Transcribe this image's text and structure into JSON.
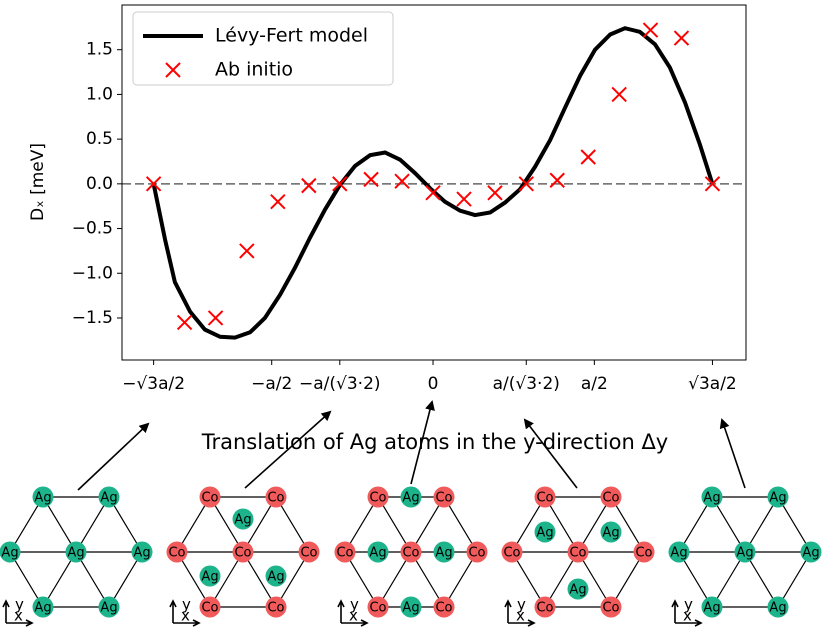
{
  "chart_data": {
    "type": "line",
    "y_label": "Dₓ [meV]",
    "x_label": "Translation of Ag atoms in the y-direction Δy",
    "xlim": [
      -0.964,
      0.97
    ],
    "ylim": [
      -1.97,
      2.0
    ],
    "xticks": [
      {
        "value": -0.866,
        "label": "−√3a/2"
      },
      {
        "value": -0.5,
        "label": "−a/2"
      },
      {
        "value": -0.289,
        "label": "−a/(√3·2)"
      },
      0,
      {
        "value": 0.289,
        "label": "a/(√3·2)"
      },
      {
        "value": 0.5,
        "label": "a/2"
      },
      {
        "value": 0.866,
        "label": "√3a/2"
      }
    ],
    "yticks": [
      {
        "value": -1.5,
        "label": "−1.5"
      },
      {
        "value": -1.0,
        "label": "−1.0"
      },
      {
        "value": -0.5,
        "label": "−0.5"
      },
      {
        "value": 0.0,
        "label": "0.0"
      },
      {
        "value": 0.5,
        "label": "0.5"
      },
      {
        "value": 1.0,
        "label": "1.0"
      },
      {
        "value": 1.5,
        "label": "1.5"
      }
    ],
    "zero_line": true,
    "legend": "upper left",
    "series": [
      {
        "name": "Lévy-Fert model",
        "type": "line",
        "color": "#000000",
        "x": [
          -0.866,
          -0.83,
          -0.8,
          -0.753,
          -0.707,
          -0.66,
          -0.614,
          -0.567,
          -0.521,
          -0.474,
          -0.428,
          -0.381,
          -0.335,
          -0.288,
          -0.242,
          -0.195,
          -0.149,
          -0.102,
          -0.056,
          -0.009,
          0.037,
          0.084,
          0.13,
          0.177,
          0.223,
          0.27,
          0.316,
          0.363,
          0.409,
          0.456,
          0.502,
          0.549,
          0.595,
          0.641,
          0.688,
          0.734,
          0.781,
          0.827,
          0.866
        ],
        "values": [
          0,
          -0.63,
          -1.1,
          -1.43,
          -1.63,
          -1.71,
          -1.72,
          -1.66,
          -1.5,
          -1.24,
          -0.94,
          -0.6,
          -0.29,
          -0.01,
          0.2,
          0.32,
          0.35,
          0.27,
          0.12,
          -0.05,
          -0.2,
          -0.3,
          -0.35,
          -0.32,
          -0.21,
          -0.06,
          0.19,
          0.49,
          0.85,
          1.21,
          1.5,
          1.67,
          1.74,
          1.7,
          1.56,
          1.3,
          0.91,
          0.44,
          0
        ]
      },
      {
        "name": "Ab initio",
        "type": "scatter",
        "color": "#ff0000",
        "x": [
          -0.866,
          -0.77,
          -0.674,
          -0.577,
          -0.481,
          -0.385,
          -0.289,
          -0.192,
          -0.096,
          0,
          0.096,
          0.192,
          0.289,
          0.385,
          0.481,
          0.577,
          0.674,
          0.77,
          0.866
        ],
        "values": [
          0,
          -1.55,
          -1.5,
          -0.75,
          -0.2,
          -0.02,
          0,
          0.05,
          0.03,
          -0.1,
          -0.17,
          -0.1,
          0,
          0.04,
          0.3,
          1.0,
          1.72,
          1.63,
          0
        ]
      }
    ]
  },
  "diagrams": {
    "atom_colors": {
      "Ag": "#1db48c",
      "Co": "#f05a5a"
    },
    "axis_labels": {
      "x": "x",
      "y": "y"
    },
    "panels": [
      {
        "sites": [
          "Ag",
          "Ag",
          "Ag",
          "Ag",
          "Ag",
          "Ag",
          "Ag"
        ],
        "adatoms": []
      },
      {
        "sites": [
          "Co",
          "Co",
          "Co",
          "Co",
          "Co",
          "Co",
          "Co"
        ],
        "adatoms": [
          "Ag",
          "Ag",
          "Ag"
        ]
      },
      {
        "sites": [
          "Co",
          "Co",
          "Co",
          "Co",
          "Co",
          "Co",
          "Co"
        ],
        "adatoms": [
          "Ag",
          "Ag",
          "Ag",
          "Ag"
        ]
      },
      {
        "sites": [
          "Co",
          "Co",
          "Co",
          "Co",
          "Co",
          "Co",
          "Co"
        ],
        "adatoms": [
          "Ag",
          "Ag",
          "Ag"
        ]
      },
      {
        "sites": [
          "Ag",
          "Ag",
          "Ag",
          "Ag",
          "Ag",
          "Ag",
          "Ag"
        ],
        "adatoms": []
      }
    ]
  }
}
